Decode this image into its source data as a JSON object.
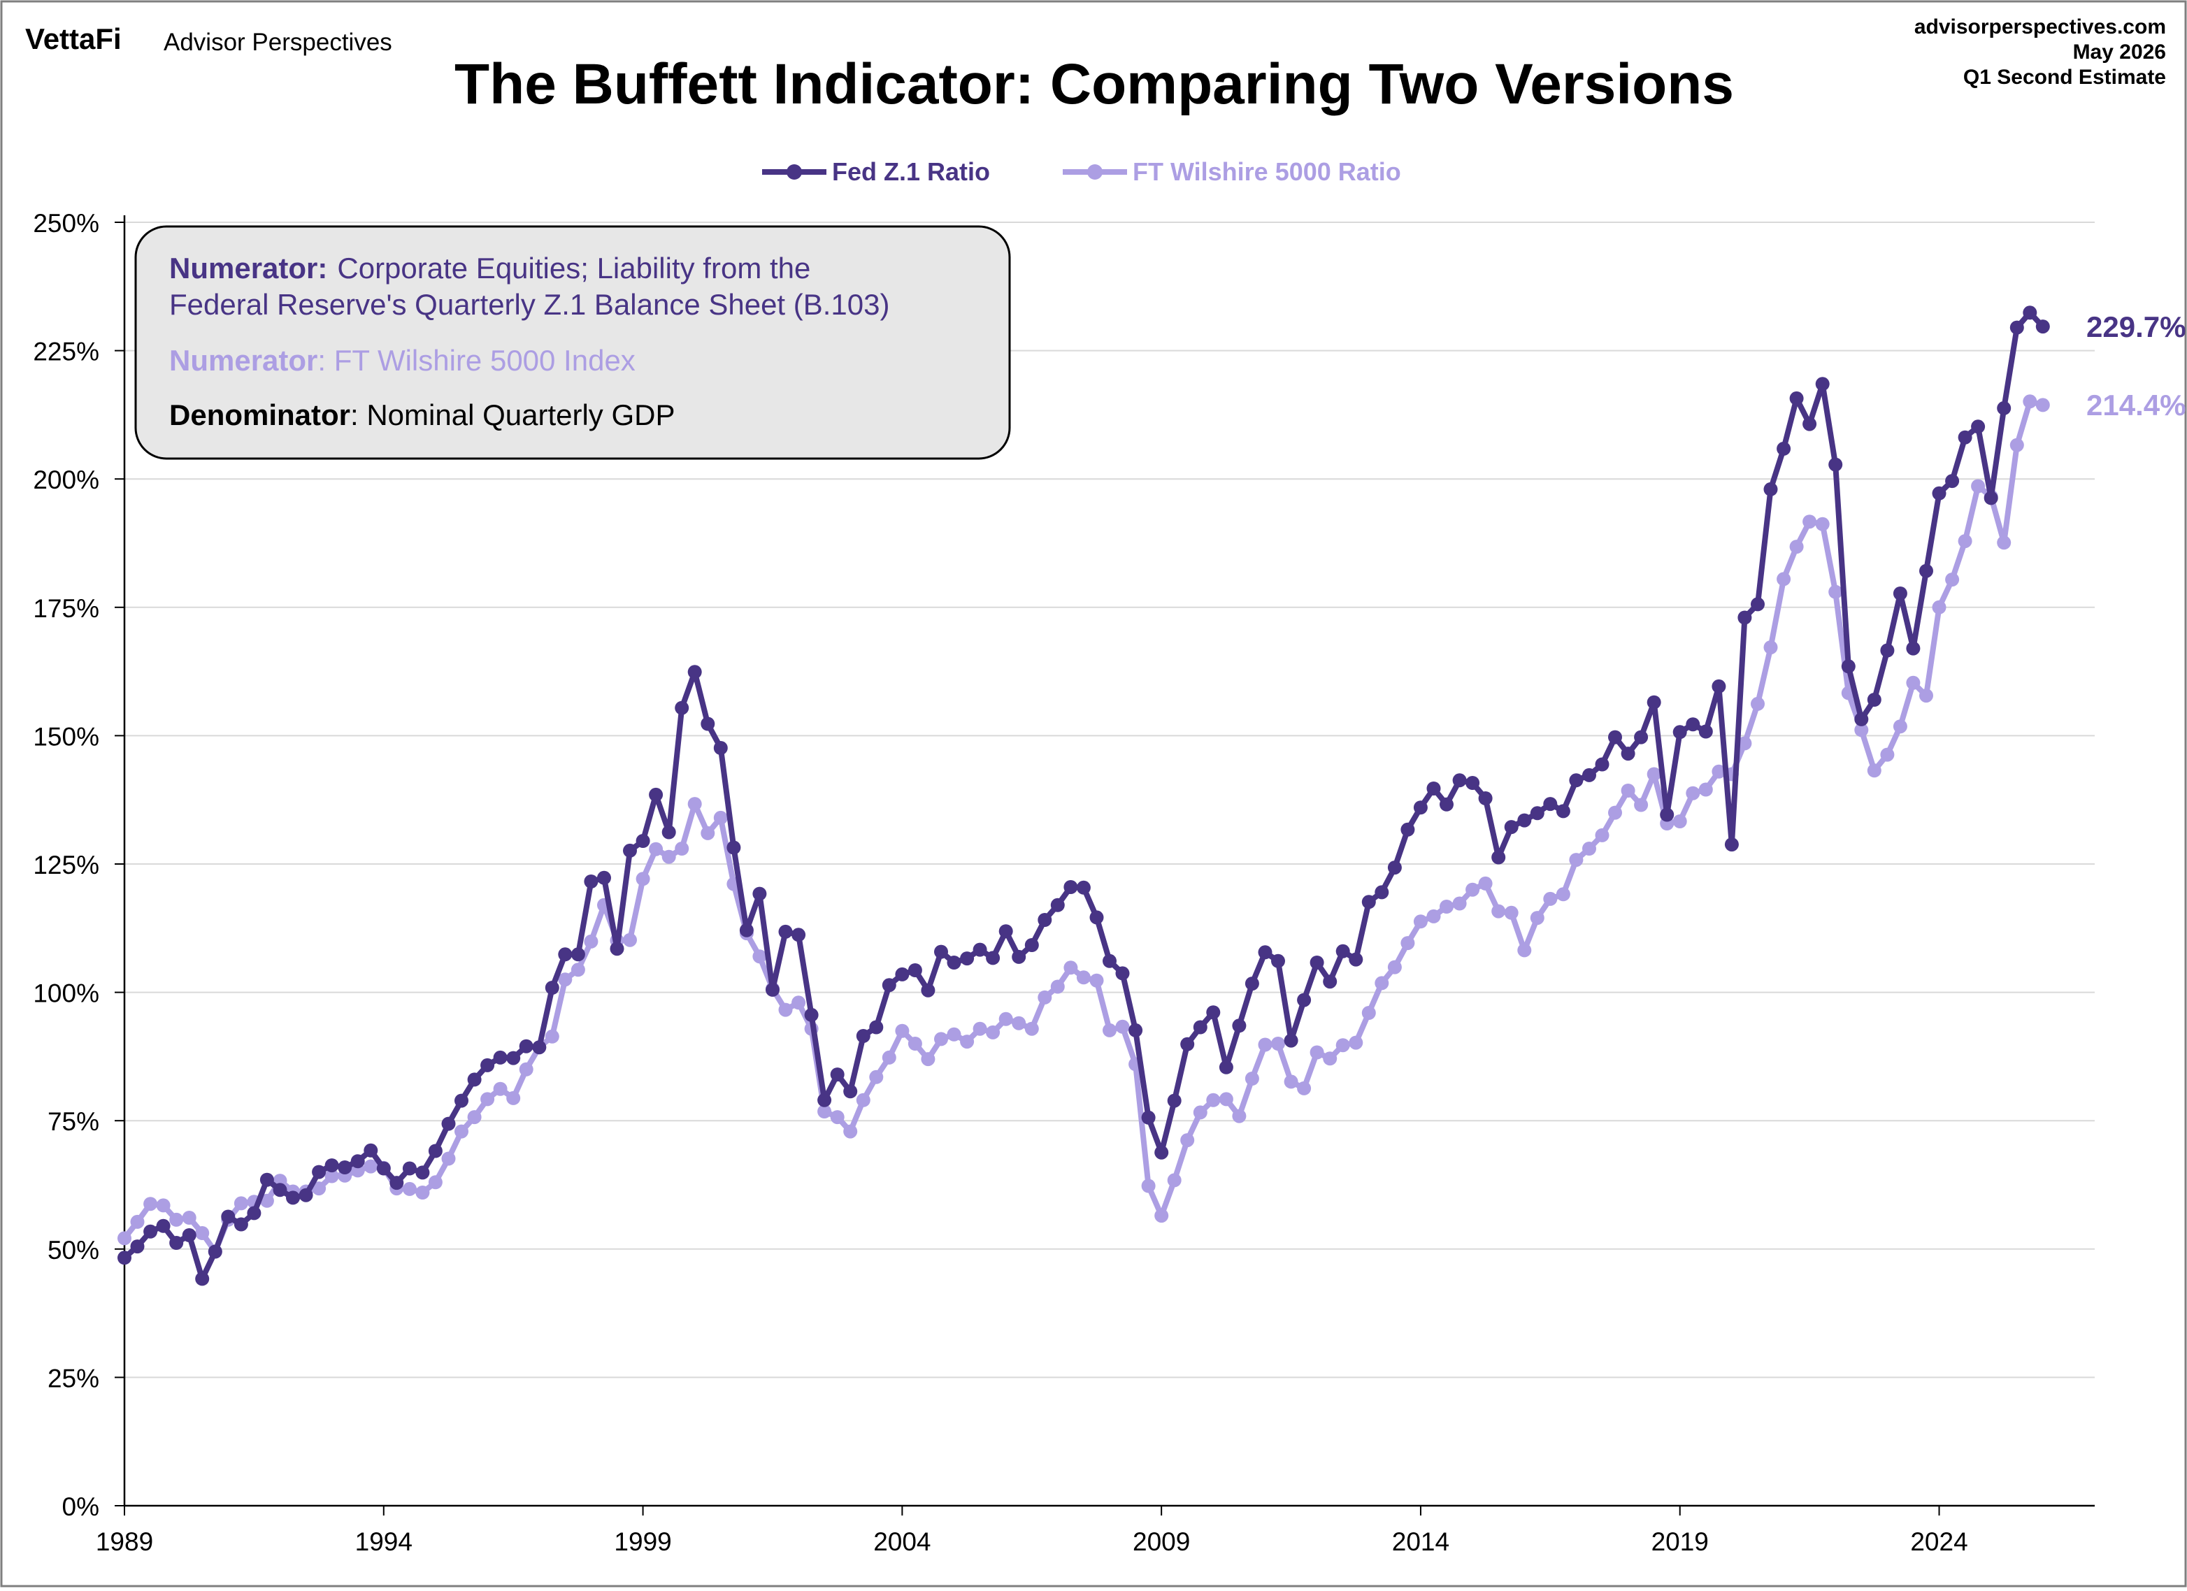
{
  "branding": {
    "logo_text": "VettaFi",
    "product": "Advisor Perspectives"
  },
  "header_right": {
    "site": "advisorperspectives.com",
    "date": "May 2026",
    "estimate": "Q1 Second Estimate"
  },
  "colors": {
    "fed": "#483485",
    "wilshire": "#ac9ee3",
    "text": "#000000",
    "grid": "#d9d9d9",
    "box_fill": "#e7e7e7"
  },
  "chart_data": {
    "type": "line",
    "title": "The Buffett Indicator: Comparing Two Versions",
    "xlabel": "",
    "ylabel": "",
    "x_start": 1989.0,
    "x_step": 0.25,
    "xlim": [
      1989,
      2027
    ],
    "ylim": [
      0,
      250
    ],
    "x_ticks": [
      1989,
      1994,
      1999,
      2004,
      2009,
      2014,
      2019,
      2024
    ],
    "y_ticks": [
      0,
      25,
      50,
      75,
      100,
      125,
      150,
      175,
      200,
      225,
      250
    ],
    "y_tick_labels": [
      "0%",
      "25%",
      "50%",
      "75%",
      "100%",
      "125%",
      "150%",
      "175%",
      "200%",
      "225%",
      "250%"
    ],
    "grid": true,
    "legend_position": "top-center",
    "series": [
      {
        "name": "Fed Z.1 Ratio",
        "end_label": "229.7%",
        "values": [
          48.3,
          50.5,
          53.4,
          54.5,
          51.2,
          52.7,
          44.2,
          49.5,
          56.3,
          54.8,
          57.0,
          63.5,
          61.5,
          60.0,
          60.5,
          65.0,
          66.3,
          65.9,
          67.1,
          69.2,
          65.7,
          62.9,
          65.7,
          64.9,
          69.1,
          74.4,
          78.9,
          83.0,
          85.8,
          87.3,
          87.2,
          89.5,
          89.3,
          100.9,
          107.4,
          107.4,
          121.6,
          122.3,
          108.5,
          127.6,
          129.5,
          138.5,
          131.2,
          155.4,
          162.4,
          152.3,
          147.6,
          128.2,
          112.1,
          119.2,
          100.5,
          111.8,
          111.2,
          95.6,
          79.0,
          84.0,
          80.7,
          91.5,
          93.2,
          101.4,
          103.5,
          104.3,
          100.4,
          107.9,
          105.8,
          106.6,
          108.3,
          106.7,
          111.9,
          106.9,
          109.2,
          114.1,
          117.0,
          120.5,
          120.4,
          114.6,
          106.1,
          103.7,
          92.6,
          75.6,
          68.8,
          78.9,
          89.9,
          93.2,
          96.1,
          85.4,
          93.5,
          101.7,
          107.8,
          106.1,
          90.6,
          98.5,
          105.8,
          102.1,
          108.0,
          106.4,
          117.6,
          119.5,
          124.3,
          131.7,
          136.0,
          139.7,
          136.6,
          141.3,
          140.8,
          137.8,
          126.3,
          132.2,
          133.5,
          134.9,
          136.7,
          135.3,
          141.3,
          142.3,
          144.4,
          149.7,
          146.5,
          149.7,
          156.5,
          134.6,
          150.7,
          152.2,
          150.8,
          159.6,
          128.8,
          173.0,
          175.6,
          198.0,
          205.9,
          215.7,
          210.7,
          218.5,
          202.8,
          163.5,
          153.2,
          157.0,
          166.6,
          177.7,
          167.0,
          182.1,
          197.2,
          199.6,
          208.1,
          210.2,
          196.3,
          213.8,
          229.5,
          232.4,
          229.7
        ]
      },
      {
        "name": "FT Wilshire 5000 Ratio",
        "end_label": "214.4%",
        "values": [
          52.1,
          55.3,
          58.8,
          58.5,
          55.7,
          56.1,
          53.1,
          49.5,
          55.7,
          58.9,
          59.2,
          59.4,
          63.3,
          61.2,
          61.2,
          61.8,
          64.2,
          64.3,
          65.3,
          66.1,
          65.8,
          61.8,
          61.7,
          61.0,
          63.0,
          67.6,
          72.9,
          75.7,
          79.2,
          81.2,
          79.4,
          85.0,
          89.3,
          91.4,
          102.5,
          104.4,
          109.9,
          117.0,
          110.1,
          110.2,
          122.1,
          127.9,
          126.4,
          128.0,
          136.7,
          131.0,
          134.0,
          121.1,
          111.5,
          107.0,
          100.7,
          96.6,
          98.0,
          92.9,
          76.8,
          75.7,
          72.9,
          79.0,
          83.5,
          87.3,
          92.5,
          90.0,
          87.0,
          90.9,
          91.8,
          90.4,
          92.9,
          92.2,
          94.8,
          94.0,
          92.9,
          99.0,
          101.1,
          104.8,
          102.9,
          102.3,
          92.6,
          93.3,
          86.0,
          62.3,
          56.5,
          63.4,
          71.2,
          76.6,
          79.0,
          79.2,
          75.9,
          83.2,
          89.8,
          90.0,
          82.6,
          81.3,
          88.3,
          87.1,
          89.7,
          90.2,
          96.0,
          101.8,
          104.9,
          109.6,
          113.8,
          114.8,
          116.7,
          117.3,
          120.0,
          121.2,
          115.8,
          115.5,
          108.2,
          114.5,
          118.2,
          119.1,
          125.8,
          128.0,
          130.6,
          135.0,
          139.3,
          136.5,
          142.5,
          132.9,
          133.3,
          138.8,
          139.5,
          143.0,
          142.5,
          148.5,
          156.2,
          167.2,
          180.5,
          186.8,
          191.7,
          191.2,
          178.0,
          158.3,
          151.1,
          143.2,
          146.3,
          151.8,
          160.3,
          157.8,
          175.0,
          180.4,
          187.9,
          198.6,
          196.6,
          187.6,
          206.6,
          215.1,
          214.4
        ]
      }
    ]
  },
  "info_box": {
    "fed_label": "Numerator:",
    "fed_line1": "Corporate Equities; Liability from the",
    "fed_line2": "Federal Reserve's Quarterly Z.1 Balance Sheet (B.103)",
    "wilshire_label": "Numerator",
    "wilshire_text": ": FT Wilshire 5000 Index",
    "denominator_label": "Denominator",
    "denominator_text": ": Nominal Quarterly GDP"
  }
}
